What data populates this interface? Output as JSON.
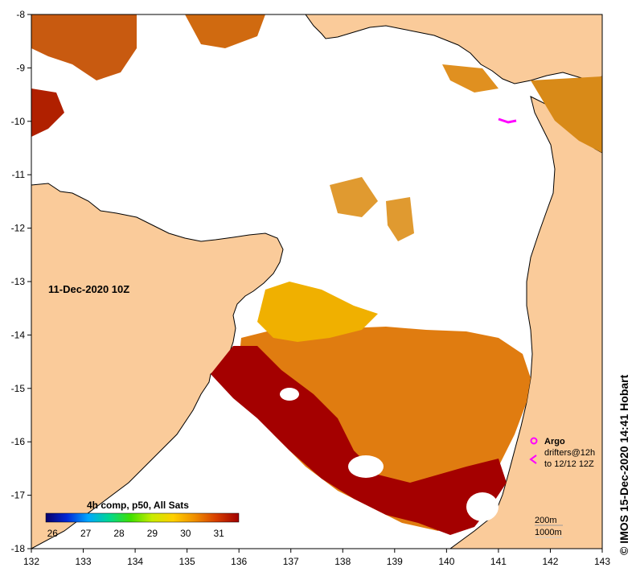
{
  "map": {
    "date_label": "11-Dec-2020 10Z",
    "credit": "© IMOS 15-Dec-2020 14:41 Hobart",
    "colors": {
      "land": "#facb9a",
      "no_data": "#ffffff",
      "coast": "#000000"
    },
    "x_axis": {
      "min": 132,
      "max": 143,
      "ticks": [
        "132",
        "133",
        "134",
        "135",
        "136",
        "137",
        "138",
        "139",
        "140",
        "141",
        "142",
        "143"
      ]
    },
    "y_axis": {
      "min": -18,
      "max": -8,
      "ticks": [
        "-8",
        "-9",
        "-10",
        "-11",
        "-12",
        "-13",
        "-14",
        "-15",
        "-16",
        "-17",
        "-18"
      ]
    },
    "colorbar": {
      "title": "4h comp, p50, All Sats",
      "min": 25.8,
      "max": 31.6,
      "tick_labels": [
        "26",
        "27",
        "28",
        "29",
        "30",
        "31"
      ],
      "colors": [
        "#08006b",
        "#0028d8",
        "#00a8ff",
        "#00d890",
        "#40e000",
        "#c8ec00",
        "#ffd000",
        "#f09000",
        "#d84000",
        "#a00000"
      ]
    },
    "legend": {
      "argo_label": "Argo",
      "drifters_label": "drifters@12h",
      "drifters_range": "to 12/12 12Z",
      "argo_color": "#ff00ff",
      "drifter_color": "#ff00ff"
    },
    "depth_contours": {
      "c200": "200m",
      "c1000": "1000m"
    }
  }
}
